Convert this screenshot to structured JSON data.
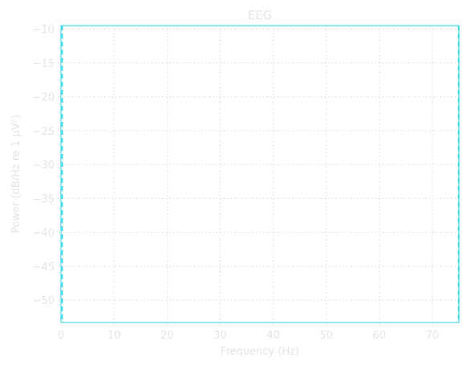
{
  "chart_data": {
    "type": "line",
    "title": "EEG",
    "xlabel": "Frequency (Hz)",
    "ylabel": "Power (dB/Hz re 1 μV²)",
    "xlim": [
      0,
      75
    ],
    "ylim": [
      -53.3,
      -9.5
    ],
    "xticks": [
      0,
      10,
      20,
      30,
      40,
      50,
      60,
      70
    ],
    "yticks": [
      -10,
      -15,
      -20,
      -25,
      -30,
      -35,
      -40,
      -45,
      -50
    ],
    "grid": true,
    "colors": {
      "frame": "#22d3e6",
      "text": "#e4e4e4",
      "grid": "#d9d9d9"
    },
    "markers": [
      {
        "x": 0.2,
        "style": "dashed"
      },
      {
        "x": 75,
        "style": "dashed"
      }
    ]
  }
}
